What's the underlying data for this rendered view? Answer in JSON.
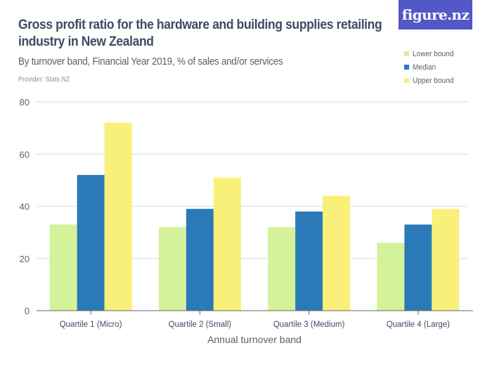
{
  "header": {
    "title": "Gross profit ratio for the hardware and building supplies retailing industry in New Zealand",
    "subtitle": "By turnover band, Financial Year 2019, % of sales and/or services",
    "provider": "Provider: Stats NZ",
    "logo_text": "figure.nz",
    "logo_color": "#5258c6"
  },
  "chart_data": {
    "type": "bar",
    "title": "Gross profit ratio for the hardware and building supplies retailing industry in New Zealand",
    "subtitle": "By turnover band, Financial Year 2019, % of sales and/or services",
    "xlabel": "Annual turnover band",
    "ylabel": "",
    "ylim": [
      0,
      80
    ],
    "yticks": [
      0,
      20,
      40,
      60,
      80
    ],
    "grid": true,
    "legend_position": "top-right",
    "categories": [
      "Quartile 1 (Micro)",
      "Quartile 2 (Small)",
      "Quartile 3 (Medium)",
      "Quartile 4 (Large)"
    ],
    "series": [
      {
        "name": "Lower bound",
        "color": "#d4f299",
        "values": [
          33,
          32,
          32,
          26
        ]
      },
      {
        "name": "Median",
        "color": "#2a7ab8",
        "values": [
          52,
          39,
          38,
          33
        ]
      },
      {
        "name": "Upper bound",
        "color": "#f9f07a",
        "values": [
          72,
          51,
          44,
          39
        ]
      }
    ]
  }
}
